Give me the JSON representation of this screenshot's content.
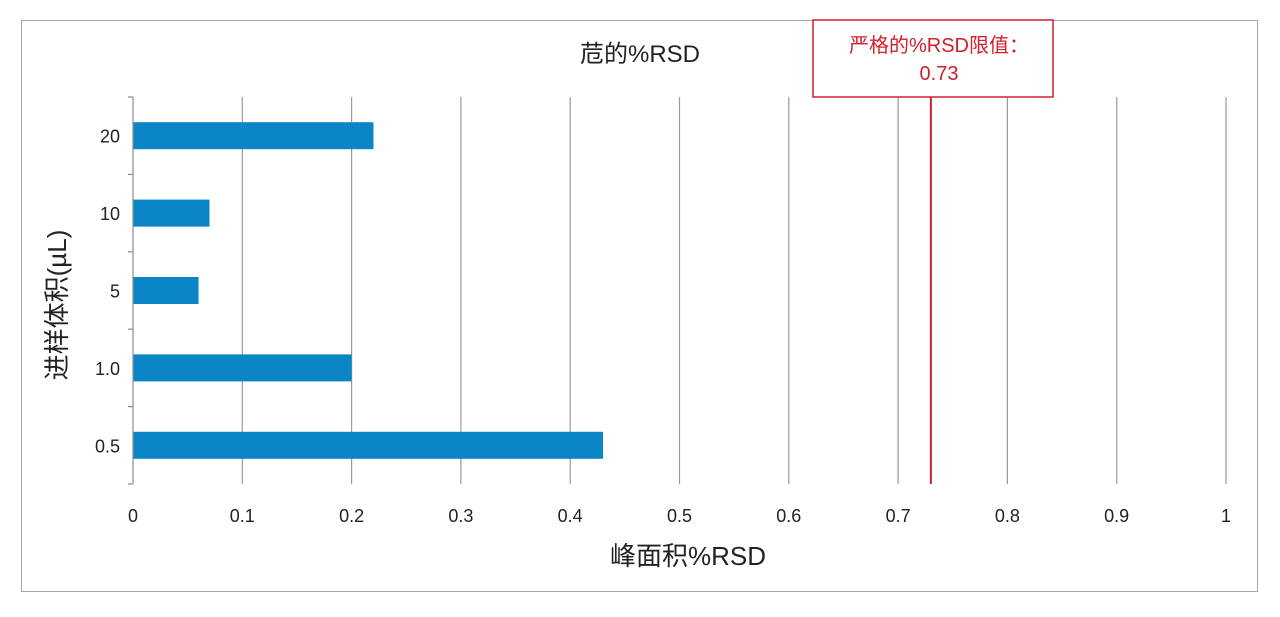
{
  "chart_data": {
    "type": "bar",
    "orientation": "horizontal",
    "title": "苊的%RSD",
    "xlabel": "峰面积%RSD",
    "ylabel": "进样体积(µL)",
    "categories": [
      "20",
      "10",
      "5",
      "1.0",
      "0.5"
    ],
    "values": [
      0.22,
      0.07,
      0.06,
      0.2,
      0.43
    ],
    "xlim": [
      0,
      1
    ],
    "xticks": [
      "0",
      "0.1",
      "0.2",
      "0.3",
      "0.4",
      "0.5",
      "0.6",
      "0.7",
      "0.8",
      "0.9",
      "1"
    ],
    "grid": "vertical",
    "bar_color": "#0a86c8",
    "annotation": {
      "text_line1": "严格的%RSD限值：",
      "text_line2": "0.73",
      "x": 0.73,
      "color": "#d0202e"
    }
  }
}
